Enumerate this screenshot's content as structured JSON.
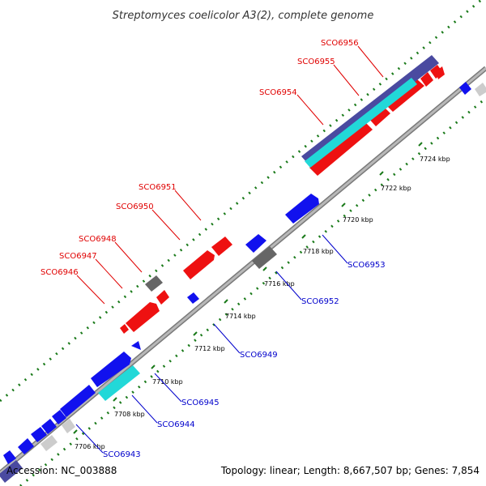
{
  "title": "Streptomyces coelicolor A3(2), complete genome",
  "footer": {
    "accession": "Accession: NC_003888",
    "summary": "Topology: linear; Length: 8,667,507 bp; Genes: 7,854"
  },
  "colors": {
    "backbone": "#9a9a9a",
    "ruler_dots": "#1a7a1a",
    "forward_label": "#e00000",
    "reverse_label": "#0000cc",
    "red_gene": "#ee1111",
    "blue_gene": "#1111ee",
    "navy_gene": "#4a4aa0",
    "cyan_gene": "#22d8d8",
    "gray_gene": "#666666",
    "light_gene": "#cccccc"
  },
  "ticks": [
    {
      "label": "7706 kbp"
    },
    {
      "label": "7708 kbp"
    },
    {
      "label": "7710 kbp"
    },
    {
      "label": "7712 kbp"
    },
    {
      "label": "7714 kbp"
    },
    {
      "label": "7716 kbp"
    },
    {
      "label": "7718 kbp"
    },
    {
      "label": "7720 kbp"
    },
    {
      "label": "7722 kbp"
    },
    {
      "label": "7724 kbp"
    }
  ],
  "forward_labels": [
    {
      "text": "SCO6946"
    },
    {
      "text": "SCO6947"
    },
    {
      "text": "SCO6948"
    },
    {
      "text": "SCO6950"
    },
    {
      "text": "SCO6951"
    },
    {
      "text": "SCO6954"
    },
    {
      "text": "SCO6955"
    },
    {
      "text": "SCO6956"
    }
  ],
  "reverse_labels": [
    {
      "text": "SCO6943"
    },
    {
      "text": "SCO6944"
    },
    {
      "text": "SCO6945"
    },
    {
      "text": "SCO6949"
    },
    {
      "text": "SCO6952"
    },
    {
      "text": "SCO6953"
    }
  ]
}
